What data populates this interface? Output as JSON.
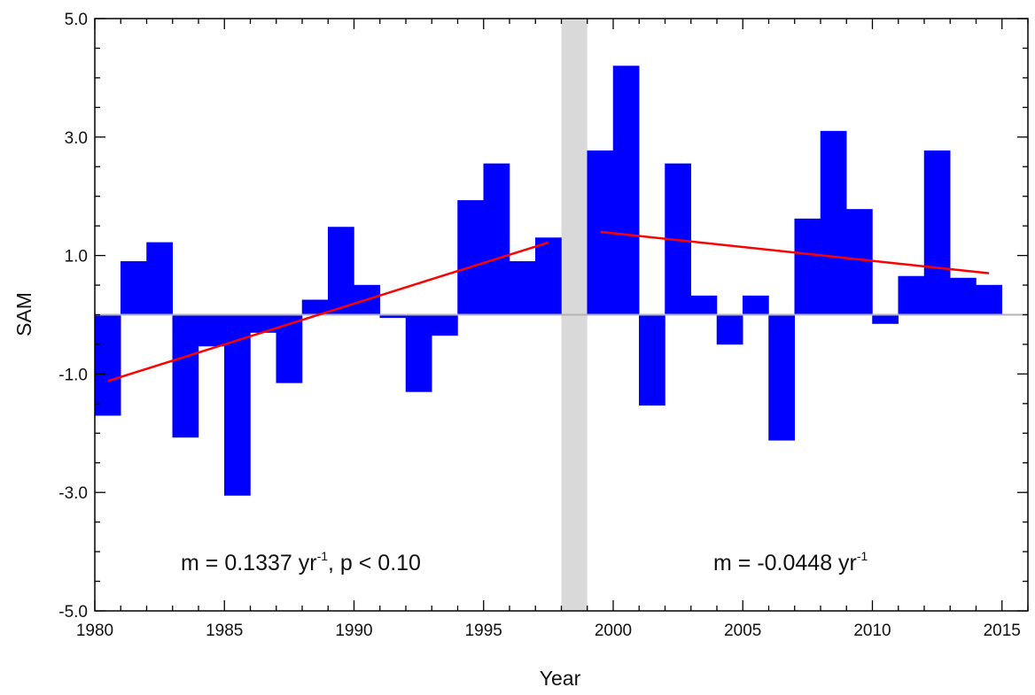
{
  "chart_data": {
    "type": "bar",
    "xlabel": "Year",
    "ylabel": "SAM",
    "xlim": [
      1980,
      2016
    ],
    "ylim": [
      -5.0,
      5.0
    ],
    "x_ticks": [
      1980,
      1985,
      1990,
      1995,
      2000,
      2005,
      2010,
      2015
    ],
    "x_tick_labels": [
      "1980",
      "1985",
      "1990",
      "1995",
      "2000",
      "2005",
      "2010",
      "2015"
    ],
    "y_ticks": [
      -5.0,
      -3.0,
      -1.0,
      1.0,
      3.0,
      5.0
    ],
    "y_tick_labels": [
      "-5.0",
      "-3.0",
      "-1.0",
      "1.0",
      "3.0",
      "5.0"
    ],
    "bar_color": "#0000ff",
    "series": [
      {
        "years": [
          1980,
          1981,
          1982,
          1983,
          1984,
          1985,
          1986,
          1987,
          1988,
          1989,
          1990,
          1991,
          1992,
          1993,
          1994,
          1995,
          1996,
          1997,
          1999,
          2000,
          2001,
          2002,
          2003,
          2004,
          2005,
          2006,
          2007,
          2008,
          2009,
          2010,
          2011,
          2012,
          2013,
          2014
        ],
        "values": [
          -1.7,
          0.9,
          1.22,
          -2.07,
          -0.53,
          -3.05,
          -0.3,
          -1.15,
          0.25,
          1.48,
          0.5,
          -0.05,
          -1.3,
          -0.35,
          1.93,
          2.55,
          0.9,
          1.3,
          2.77,
          4.2,
          -1.53,
          2.55,
          0.32,
          -0.5,
          0.32,
          -2.12,
          1.62,
          3.1,
          1.78,
          -0.15,
          0.65,
          2.77,
          0.62,
          0.5
        ]
      }
    ],
    "trend_lines": [
      {
        "color": "#ff0000",
        "x": [
          1980.5,
          1997.5
        ],
        "y": [
          -1.12,
          1.22
        ]
      },
      {
        "color": "#ff0000",
        "x": [
          1999.5,
          2014.5
        ],
        "y": [
          1.4,
          0.7
        ]
      }
    ],
    "shaded_span": {
      "x": [
        1998,
        1999
      ],
      "color": "#d9d9d9"
    },
    "zero_line_color": "#b3b3b3"
  },
  "annotations": [
    {
      "id": "left",
      "main": "m = 0.1337 yr",
      "sup": "-1",
      "tail": ", p < 0.10"
    },
    {
      "id": "right",
      "main": "m = -0.0448 yr",
      "sup": "-1",
      "tail": ""
    }
  ]
}
